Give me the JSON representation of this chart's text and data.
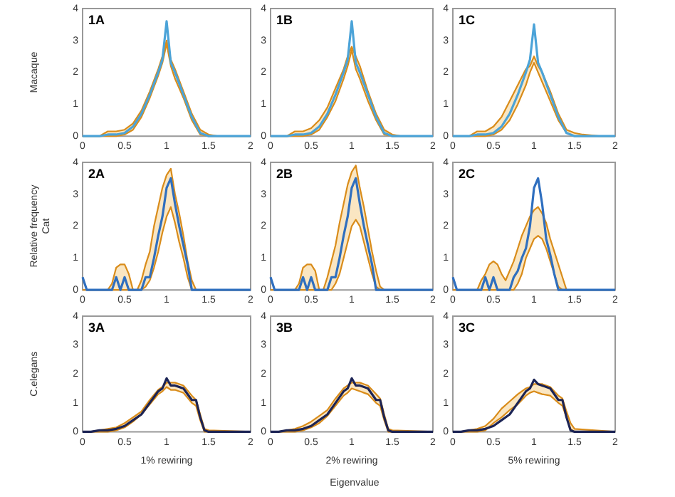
{
  "chart_data": [
    {
      "type": "line",
      "ylabel": "Macaque",
      "annotations": [
        "1A"
      ],
      "x": [
        0,
        0.1,
        0.2,
        0.3,
        0.4,
        0.5,
        0.6,
        0.7,
        0.8,
        0.9,
        0.95,
        1,
        1.05,
        1.1,
        1.2,
        1.3,
        1.4,
        1.5,
        1.6,
        1.8,
        2
      ],
      "xlim": [
        0,
        2
      ],
      "ylim": [
        0,
        4
      ],
      "xticks": [
        0,
        0.5,
        1,
        1.5,
        2
      ],
      "yticks": [
        0,
        1,
        2,
        3,
        4
      ],
      "legend": false,
      "grid": false,
      "marker": "none",
      "line_style": "solid",
      "series": [
        {
          "color": "#4ba3d8",
          "values": [
            0,
            0,
            0,
            0.05,
            0.05,
            0.1,
            0.3,
            0.7,
            1.3,
            2.0,
            2.4,
            3.6,
            2.3,
            2.0,
            1.3,
            0.6,
            0.1,
            0,
            0,
            0,
            0
          ]
        },
        {
          "color": "#d98c1a",
          "values": [
            0,
            0,
            0,
            0.15,
            0.15,
            0.2,
            0.4,
            0.8,
            1.4,
            2.1,
            2.5,
            3.0,
            2.4,
            2.1,
            1.4,
            0.7,
            0.2,
            0.05,
            0,
            0,
            0
          ]
        },
        {
          "color": "#d98c1a",
          "values": [
            0,
            0,
            0,
            0,
            0,
            0.05,
            0.2,
            0.6,
            1.2,
            1.9,
            2.3,
            2.9,
            2.2,
            1.8,
            1.2,
            0.5,
            0.05,
            0,
            0,
            0,
            0
          ]
        }
      ]
    },
    {
      "type": "line",
      "annotations": [
        "1B"
      ],
      "x": [
        0,
        0.1,
        0.2,
        0.3,
        0.4,
        0.5,
        0.6,
        0.7,
        0.8,
        0.9,
        0.95,
        1,
        1.05,
        1.1,
        1.2,
        1.3,
        1.4,
        1.5,
        1.6,
        1.8,
        2
      ],
      "xlim": [
        0,
        2
      ],
      "ylim": [
        0,
        4
      ],
      "xticks": [
        0,
        0.5,
        1,
        1.5,
        2
      ],
      "yticks": [
        0,
        1,
        2,
        3,
        4
      ],
      "legend": false,
      "grid": false,
      "marker": "none",
      "line_style": "solid",
      "series": [
        {
          "color": "#4ba3d8",
          "values": [
            0,
            0,
            0,
            0.05,
            0.05,
            0.1,
            0.3,
            0.7,
            1.3,
            2.0,
            2.4,
            3.6,
            2.3,
            2.0,
            1.3,
            0.6,
            0.1,
            0,
            0,
            0,
            0
          ]
        },
        {
          "color": "#d98c1a",
          "values": [
            0,
            0,
            0,
            0.15,
            0.15,
            0.25,
            0.5,
            0.9,
            1.5,
            2.1,
            2.5,
            2.8,
            2.5,
            2.2,
            1.4,
            0.7,
            0.2,
            0.05,
            0,
            0,
            0
          ]
        },
        {
          "color": "#d98c1a",
          "values": [
            0,
            0,
            0,
            0,
            0,
            0.05,
            0.2,
            0.6,
            1.1,
            1.8,
            2.2,
            2.7,
            2.1,
            1.8,
            1.1,
            0.5,
            0.05,
            0,
            0,
            0,
            0
          ]
        }
      ]
    },
    {
      "type": "line",
      "annotations": [
        "1C"
      ],
      "x": [
        0,
        0.1,
        0.2,
        0.3,
        0.4,
        0.5,
        0.6,
        0.7,
        0.8,
        0.9,
        0.95,
        1,
        1.05,
        1.1,
        1.2,
        1.3,
        1.4,
        1.5,
        1.6,
        1.8,
        2
      ],
      "xlim": [
        0,
        2
      ],
      "ylim": [
        0,
        4
      ],
      "xticks": [
        0,
        0.5,
        1,
        1.5,
        2
      ],
      "yticks": [
        0,
        1,
        2,
        3,
        4
      ],
      "legend": false,
      "grid": false,
      "marker": "none",
      "line_style": "solid",
      "series": [
        {
          "color": "#4ba3d8",
          "values": [
            0,
            0,
            0,
            0.05,
            0.05,
            0.1,
            0.3,
            0.7,
            1.3,
            2.0,
            2.4,
            3.5,
            2.3,
            2.0,
            1.3,
            0.6,
            0.1,
            0,
            0,
            0,
            0
          ]
        },
        {
          "color": "#d98c1a",
          "values": [
            0,
            0,
            0,
            0.15,
            0.15,
            0.3,
            0.6,
            1.1,
            1.6,
            2.1,
            2.2,
            2.5,
            2.2,
            2.0,
            1.4,
            0.7,
            0.2,
            0.1,
            0.05,
            0,
            0
          ]
        },
        {
          "color": "#d98c1a",
          "values": [
            0,
            0,
            0,
            0,
            0,
            0.05,
            0.2,
            0.5,
            1.0,
            1.6,
            2.0,
            2.3,
            2.0,
            1.7,
            1.1,
            0.5,
            0.1,
            0,
            0,
            0,
            0
          ]
        }
      ]
    },
    {
      "type": "line",
      "ylabel": "Relative frequency\nCat",
      "annotations": [
        "2A"
      ],
      "x": [
        0,
        0.05,
        0.3,
        0.35,
        0.4,
        0.45,
        0.5,
        0.55,
        0.6,
        0.65,
        0.7,
        0.75,
        0.8,
        0.85,
        0.9,
        0.95,
        1,
        1.05,
        1.1,
        1.15,
        1.2,
        1.25,
        1.3,
        1.35,
        1.4,
        1.5,
        2
      ],
      "xlim": [
        0,
        2
      ],
      "ylim": [
        0,
        4
      ],
      "xticks": [
        0,
        0.5,
        1,
        1.5,
        2
      ],
      "yticks": [
        0,
        1,
        2,
        3,
        4
      ],
      "legend": false,
      "grid": false,
      "marker": "none",
      "line_style": "solid",
      "series": [
        {
          "color": "#2f6fbf",
          "values": [
            0.4,
            0,
            0,
            0,
            0.4,
            0,
            0.4,
            0,
            0,
            0,
            0,
            0.4,
            0.4,
            1.0,
            1.7,
            2.3,
            3.2,
            3.5,
            2.7,
            2.0,
            1.4,
            0.8,
            0,
            0,
            0,
            0,
            0
          ]
        },
        {
          "color": "#d98c1a",
          "values": [
            null,
            0,
            0,
            0.2,
            0.7,
            0.8,
            0.8,
            0.5,
            0,
            0,
            0.3,
            0.8,
            1.2,
            2.0,
            2.6,
            3.2,
            3.6,
            3.8,
            3.0,
            2.4,
            1.7,
            0.9,
            0.3,
            0,
            0,
            0,
            0
          ]
        },
        {
          "color": "#d98c1a",
          "values": [
            0,
            0,
            0,
            0,
            0,
            0,
            0,
            0,
            0,
            0,
            0,
            0.1,
            0.3,
            0.7,
            1.2,
            1.8,
            2.3,
            2.6,
            2.1,
            1.5,
            1.0,
            0.4,
            0,
            0,
            0,
            0,
            0
          ]
        }
      ]
    },
    {
      "type": "line",
      "annotations": [
        "2B"
      ],
      "x": [
        0,
        0.05,
        0.3,
        0.35,
        0.4,
        0.45,
        0.5,
        0.55,
        0.6,
        0.65,
        0.7,
        0.75,
        0.8,
        0.85,
        0.9,
        0.95,
        1,
        1.05,
        1.1,
        1.15,
        1.2,
        1.25,
        1.3,
        1.35,
        1.4,
        1.5,
        2
      ],
      "xlim": [
        0,
        2
      ],
      "ylim": [
        0,
        4
      ],
      "xticks": [
        0,
        0.5,
        1,
        1.5,
        2
      ],
      "yticks": [
        0,
        1,
        2,
        3,
        4
      ],
      "legend": false,
      "grid": false,
      "marker": "none",
      "line_style": "solid",
      "series": [
        {
          "color": "#2f6fbf",
          "values": [
            0.4,
            0,
            0,
            0,
            0.4,
            0,
            0.4,
            0,
            0,
            0,
            0,
            0.4,
            0.4,
            1.0,
            1.7,
            2.3,
            3.2,
            3.5,
            2.7,
            2.0,
            1.4,
            0.8,
            0,
            0,
            0,
            0,
            0
          ]
        },
        {
          "color": "#d98c1a",
          "values": [
            null,
            0,
            0,
            0.2,
            0.7,
            0.8,
            0.8,
            0.6,
            0,
            0,
            0.4,
            0.9,
            1.4,
            2.1,
            2.7,
            3.3,
            3.7,
            3.9,
            3.2,
            2.6,
            1.9,
            1.2,
            0.6,
            0.1,
            0,
            0,
            0
          ]
        },
        {
          "color": "#d98c1a",
          "values": [
            0,
            0,
            0,
            0,
            0,
            0,
            0,
            0,
            0,
            0,
            0,
            0,
            0.2,
            0.5,
            1.0,
            1.5,
            2.0,
            2.2,
            2.0,
            1.5,
            1.0,
            0.5,
            0.1,
            0,
            0,
            0,
            0
          ]
        }
      ]
    },
    {
      "type": "line",
      "annotations": [
        "2C"
      ],
      "x": [
        0,
        0.05,
        0.3,
        0.35,
        0.4,
        0.45,
        0.5,
        0.55,
        0.6,
        0.65,
        0.7,
        0.75,
        0.8,
        0.85,
        0.9,
        0.95,
        1,
        1.05,
        1.1,
        1.15,
        1.2,
        1.25,
        1.3,
        1.35,
        1.4,
        1.5,
        2
      ],
      "xlim": [
        0,
        2
      ],
      "ylim": [
        0,
        4
      ],
      "xticks": [
        0,
        0.5,
        1,
        1.5,
        2
      ],
      "yticks": [
        0,
        1,
        2,
        3,
        4
      ],
      "legend": false,
      "grid": false,
      "marker": "none",
      "line_style": "solid",
      "series": [
        {
          "color": "#2f6fbf",
          "values": [
            0.4,
            0,
            0,
            0,
            0.4,
            0,
            0.4,
            0,
            0,
            0,
            0,
            0.4,
            0.6,
            1.0,
            1.3,
            2.0,
            3.2,
            3.5,
            2.7,
            1.6,
            1.1,
            0.5,
            0,
            0,
            0,
            0,
            0
          ]
        },
        {
          "color": "#d98c1a",
          "values": [
            null,
            0,
            0,
            0.3,
            0.5,
            0.8,
            0.9,
            0.8,
            0.5,
            0.3,
            0.6,
            0.9,
            1.3,
            1.7,
            2.0,
            2.3,
            2.5,
            2.6,
            2.4,
            2.1,
            1.6,
            1.2,
            0.8,
            0.4,
            0,
            0,
            0
          ]
        },
        {
          "color": "#d98c1a",
          "values": [
            0,
            0,
            0,
            0,
            0,
            0,
            0,
            0,
            0,
            0,
            0,
            0,
            0.2,
            0.5,
            1.0,
            1.3,
            1.6,
            1.7,
            1.6,
            1.3,
            0.9,
            0.5,
            0.1,
            0,
            0,
            0,
            0
          ]
        }
      ]
    },
    {
      "type": "line",
      "ylabel": "C.elegans",
      "xlabel": "1% rewiring",
      "annotations": [
        "3A"
      ],
      "x": [
        0,
        0.1,
        0.2,
        0.3,
        0.4,
        0.5,
        0.6,
        0.7,
        0.8,
        0.9,
        0.95,
        1,
        1.05,
        1.1,
        1.2,
        1.3,
        1.35,
        1.4,
        1.45,
        1.5,
        2
      ],
      "xlim": [
        0,
        2
      ],
      "ylim": [
        0,
        4
      ],
      "xticks": [
        0,
        0.5,
        1,
        1.5,
        2
      ],
      "yticks": [
        0,
        1,
        2,
        3,
        4
      ],
      "legend": false,
      "grid": false,
      "marker": "none",
      "line_style": "solid",
      "series": [
        {
          "color": "#1c2455",
          "values": [
            0,
            0,
            0.05,
            0.05,
            0.1,
            0.2,
            0.4,
            0.6,
            1.0,
            1.4,
            1.5,
            1.85,
            1.6,
            1.6,
            1.5,
            1.1,
            1.1,
            0.5,
            0.05,
            0,
            0
          ]
        },
        {
          "color": "#d98c1a",
          "values": [
            0,
            0,
            0.05,
            0.1,
            0.15,
            0.3,
            0.5,
            0.7,
            1.1,
            1.45,
            1.55,
            1.7,
            1.7,
            1.7,
            1.6,
            1.25,
            1.1,
            0.6,
            0.1,
            0.05,
            0
          ]
        },
        {
          "color": "#d98c1a",
          "values": [
            0,
            0,
            0,
            0,
            0.05,
            0.15,
            0.35,
            0.6,
            0.95,
            1.3,
            1.4,
            1.55,
            1.45,
            1.45,
            1.35,
            1.0,
            0.9,
            0.4,
            0,
            0,
            0
          ]
        }
      ]
    },
    {
      "type": "line",
      "xlabel": "2% rewiring",
      "annotations": [
        "3B",
        "Eigenvalue"
      ],
      "x": [
        0,
        0.1,
        0.2,
        0.3,
        0.4,
        0.5,
        0.6,
        0.7,
        0.8,
        0.9,
        0.95,
        1,
        1.05,
        1.1,
        1.2,
        1.3,
        1.35,
        1.4,
        1.45,
        1.5,
        2
      ],
      "xlim": [
        0,
        2
      ],
      "ylim": [
        0,
        4
      ],
      "xticks": [
        0,
        0.5,
        1,
        1.5,
        2
      ],
      "yticks": [
        0,
        1,
        2,
        3,
        4
      ],
      "legend": false,
      "grid": false,
      "marker": "none",
      "line_style": "solid",
      "series": [
        {
          "color": "#1c2455",
          "values": [
            0,
            0,
            0.05,
            0.05,
            0.1,
            0.2,
            0.4,
            0.6,
            1.0,
            1.4,
            1.5,
            1.85,
            1.6,
            1.6,
            1.5,
            1.1,
            1.1,
            0.5,
            0.05,
            0,
            0
          ]
        },
        {
          "color": "#d98c1a",
          "values": [
            0,
            0,
            0.05,
            0.1,
            0.2,
            0.35,
            0.55,
            0.75,
            1.15,
            1.5,
            1.6,
            1.7,
            1.7,
            1.7,
            1.6,
            1.3,
            1.15,
            0.6,
            0.1,
            0.05,
            0
          ]
        },
        {
          "color": "#d98c1a",
          "values": [
            0,
            0,
            0,
            0,
            0.05,
            0.15,
            0.3,
            0.55,
            0.9,
            1.25,
            1.35,
            1.5,
            1.45,
            1.4,
            1.3,
            1.0,
            0.9,
            0.4,
            0,
            0,
            0
          ]
        }
      ]
    },
    {
      "type": "line",
      "xlabel": "5% rewiring",
      "annotations": [
        "3C"
      ],
      "x": [
        0,
        0.1,
        0.2,
        0.3,
        0.4,
        0.5,
        0.6,
        0.7,
        0.8,
        0.9,
        0.95,
        1,
        1.05,
        1.1,
        1.2,
        1.3,
        1.35,
        1.4,
        1.45,
        1.5,
        2
      ],
      "xlim": [
        0,
        2
      ],
      "ylim": [
        0,
        4
      ],
      "xticks": [
        0,
        0.5,
        1,
        1.5,
        2
      ],
      "yticks": [
        0,
        1,
        2,
        3,
        4
      ],
      "legend": false,
      "grid": false,
      "marker": "none",
      "line_style": "solid",
      "series": [
        {
          "color": "#1c2455",
          "values": [
            0,
            0,
            0.05,
            0.05,
            0.1,
            0.2,
            0.4,
            0.6,
            1.0,
            1.4,
            1.5,
            1.8,
            1.65,
            1.6,
            1.5,
            1.1,
            1.1,
            0.5,
            0.05,
            0,
            0
          ]
        },
        {
          "color": "#d98c1a",
          "values": [
            0,
            0,
            0.05,
            0.1,
            0.2,
            0.45,
            0.8,
            1.05,
            1.3,
            1.5,
            1.55,
            1.65,
            1.65,
            1.65,
            1.55,
            1.25,
            1.15,
            0.7,
            0.3,
            0.1,
            0
          ]
        },
        {
          "color": "#d98c1a",
          "values": [
            0,
            0,
            0,
            0,
            0.05,
            0.3,
            0.5,
            0.75,
            0.95,
            1.25,
            1.35,
            1.4,
            1.35,
            1.3,
            1.25,
            1.0,
            0.9,
            0.5,
            0.1,
            0,
            0
          ]
        }
      ]
    }
  ]
}
